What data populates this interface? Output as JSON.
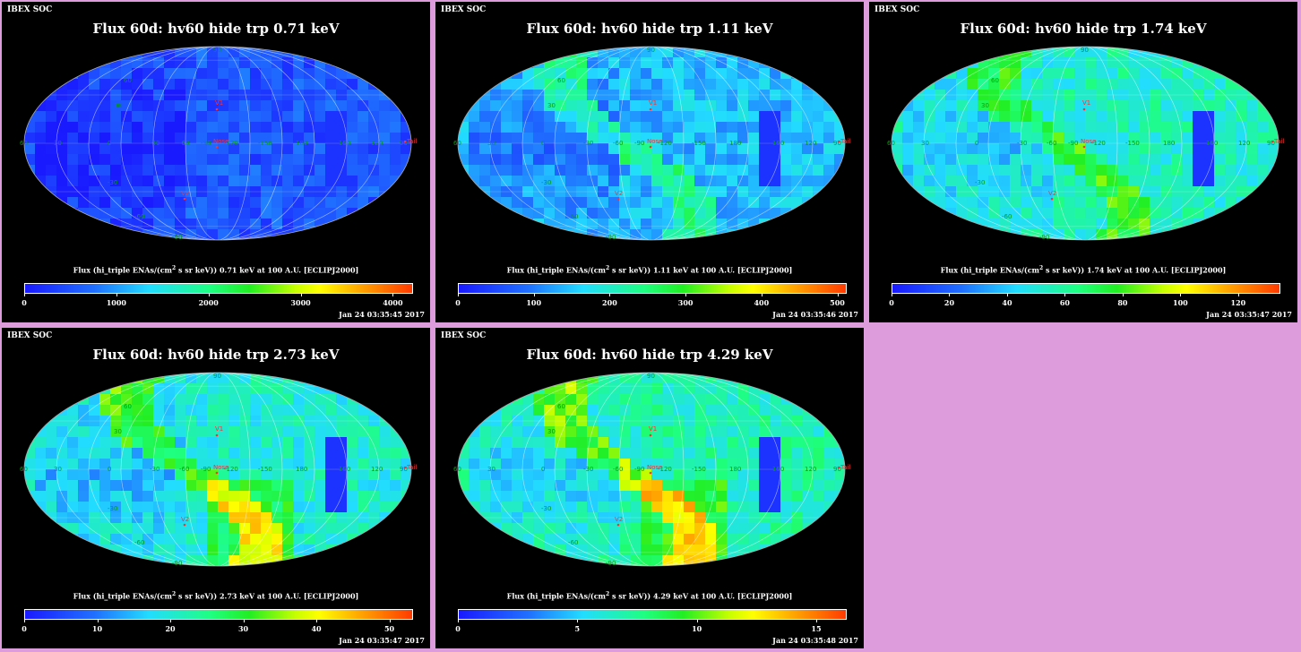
{
  "panels": [
    {
      "soc": "IBEX SOC",
      "title": "Flux 60d: hv60 hide trp 0.71 keV",
      "caption_pre": "Flux (hi_triple ENAs/(cm",
      "caption_post": " s sr keV)) 0.71 keV at 100 A.U. [ECLIPJ2000]",
      "caption_sup": "2",
      "date": "Jan 24 03:35:45 2017",
      "scale_max": 4200,
      "ticks": [
        0,
        1000,
        2000,
        3000,
        4000
      ],
      "base_level": 0.12
    },
    {
      "soc": "IBEX SOC",
      "title": "Flux 60d: hv60 hide trp 1.11 keV",
      "caption_pre": "Flux (hi_triple ENAs/(cm",
      "caption_post": " s sr keV)) 1.11 keV at 100 A.U. [ECLIPJ2000]",
      "caption_sup": "2",
      "date": "Jan 24 03:35:46 2017",
      "scale_max": 510,
      "ticks": [
        0,
        100,
        200,
        300,
        400,
        500
      ],
      "base_level": 0.28
    },
    {
      "soc": "IBEX SOC",
      "title": "Flux 60d: hv60 hide trp 1.74 keV",
      "caption_pre": "Flux (hi_triple ENAs/(cm",
      "caption_post": " s sr keV)) 1.74 keV at 100 A.U. [ECLIPJ2000]",
      "caption_sup": "2",
      "date": "Jan 24 03:35:47 2017",
      "scale_max": 134,
      "ticks": [
        0,
        20,
        40,
        60,
        80,
        100,
        120
      ],
      "base_level": 0.4
    },
    {
      "soc": "IBEX SOC",
      "title": "Flux 60d: hv60 hide trp 2.73 keV",
      "caption_pre": "Flux (hi_triple ENAs/(cm",
      "caption_post": " s sr keV)) 2.73 keV at 100 A.U. [ECLIPJ2000]",
      "caption_sup": "2",
      "date": "Jan 24 03:35:47 2017",
      "scale_max": 53,
      "ticks": [
        0,
        10,
        20,
        30,
        40,
        50
      ],
      "base_level": 0.38
    },
    {
      "soc": "IBEX SOC",
      "title": "Flux 60d: hv60 hide trp 4.29 keV",
      "caption_pre": "Flux (hi_triple ENAs/(cm",
      "caption_post": " s sr keV)) 4.29 keV at 100 A.U. [ECLIPJ2000]",
      "caption_sup": "2",
      "date": "Jan 24 03:35:48 2017",
      "scale_max": 16.2,
      "ticks": [
        0,
        5,
        10,
        15
      ],
      "base_level": 0.42
    }
  ],
  "map_labels": {
    "lon": [
      "60",
      "30",
      "0",
      "-30",
      "-60",
      "-90",
      "-120",
      "-150",
      "180",
      "150",
      "120",
      "90"
    ],
    "lat": [
      "60",
      "30",
      "-30",
      "-60",
      "-90",
      "90"
    ],
    "markers": {
      "v1": "V1",
      "v2": "V2",
      "nose": "Nose",
      "tail": "Tail"
    }
  },
  "colors": {
    "background": "#dd9ddd",
    "panel": "#000000",
    "grid": "#00a000",
    "marker": "#ff3030"
  }
}
